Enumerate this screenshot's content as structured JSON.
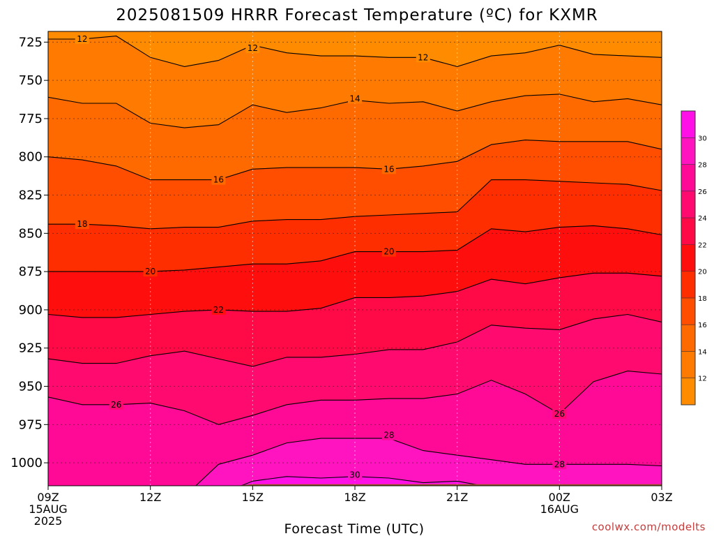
{
  "chart_data": {
    "type": "heatmap",
    "subtype": "filled-contour",
    "title": "2025081509 HRRR Forecast Temperature (ºC) for KXMR",
    "xlabel": "Forecast Time (UTC)",
    "ylabel": "",
    "y_scale": "inverted",
    "ylim": [
      1015,
      718
    ],
    "xlim": [
      0,
      18
    ],
    "grid": true,
    "x_ticks": [
      {
        "x": 0,
        "lines": [
          "09Z",
          "15AUG",
          "2025"
        ]
      },
      {
        "x": 3,
        "lines": [
          "12Z"
        ]
      },
      {
        "x": 6,
        "lines": [
          "15Z"
        ]
      },
      {
        "x": 9,
        "lines": [
          "18Z"
        ]
      },
      {
        "x": 12,
        "lines": [
          "21Z"
        ]
      },
      {
        "x": 15,
        "lines": [
          "00Z",
          "16AUG"
        ]
      },
      {
        "x": 18,
        "lines": [
          "03Z"
        ]
      }
    ],
    "y_ticks": [
      725,
      750,
      775,
      800,
      825,
      850,
      875,
      900,
      925,
      950,
      975,
      1000
    ],
    "x_hours": [
      0,
      1,
      2,
      3,
      4,
      5,
      6,
      7,
      8,
      9,
      10,
      11,
      12,
      13,
      14,
      15,
      16,
      17,
      18
    ],
    "contours": [
      {
        "level": 12,
        "labels": [
          {
            "x": 1,
            "p": 723
          },
          {
            "x": 6,
            "p": 729
          },
          {
            "x": 11,
            "p": 735
          }
        ],
        "pressure": [
          723,
          723,
          721,
          735,
          741,
          737,
          727,
          732,
          734,
          734,
          735,
          735,
          741,
          734,
          732,
          727,
          733,
          734,
          735
        ]
      },
      {
        "level": 14,
        "labels": [
          {
            "x": 9,
            "p": 762
          }
        ],
        "pressure": [
          761,
          765,
          765,
          778,
          781,
          779,
          766,
          771,
          768,
          763,
          765,
          764,
          770,
          764,
          760,
          759,
          764,
          762,
          766
        ]
      },
      {
        "level": 16,
        "labels": [
          {
            "x": 5,
            "p": 815
          },
          {
            "x": 10,
            "p": 808
          }
        ],
        "pressure": [
          800,
          802,
          806,
          815,
          815,
          815,
          808,
          807,
          807,
          807,
          808,
          806,
          803,
          792,
          789,
          790,
          790,
          790,
          795
        ]
      },
      {
        "level": 18,
        "labels": [
          {
            "x": 1,
            "p": 844
          }
        ],
        "pressure": [
          844,
          844,
          845,
          847,
          846,
          846,
          842,
          841,
          841,
          839,
          838,
          837,
          836,
          815,
          815,
          816,
          817,
          818,
          822
        ]
      },
      {
        "level": 20,
        "labels": [
          {
            "x": 3,
            "p": 875
          },
          {
            "x": 10,
            "p": 862
          }
        ],
        "pressure": [
          875,
          875,
          875,
          875,
          874,
          872,
          870,
          870,
          868,
          862,
          862,
          862,
          861,
          847,
          849,
          846,
          845,
          847,
          851
        ]
      },
      {
        "level": 22,
        "labels": [
          {
            "x": 5,
            "p": 900
          }
        ],
        "pressure": [
          903,
          905,
          905,
          903,
          901,
          900,
          901,
          901,
          899,
          892,
          892,
          891,
          888,
          880,
          883,
          879,
          876,
          876,
          878
        ]
      },
      {
        "level": 24,
        "labels": [],
        "pressure": [
          932,
          935,
          935,
          930,
          927,
          932,
          937,
          931,
          931,
          929,
          926,
          926,
          921,
          910,
          912,
          913,
          906,
          903,
          908
        ]
      },
      {
        "level": 26,
        "labels": [
          {
            "x": 2,
            "p": 962
          },
          {
            "x": 15,
            "p": 968
          }
        ],
        "pressure": [
          957,
          962,
          962,
          961,
          966,
          975,
          969,
          962,
          959,
          959,
          958,
          958,
          955,
          946,
          955,
          968,
          947,
          940,
          942
        ]
      },
      {
        "level": 28,
        "labels": [
          {
            "x": 10,
            "p": 982
          },
          {
            "x": 15,
            "p": 1001
          }
        ],
        "pressure": [
          null,
          null,
          null,
          null,
          1022,
          1001,
          995,
          987,
          984,
          984,
          984,
          992,
          995,
          998,
          1001,
          1001,
          1001,
          1001,
          1002
        ]
      },
      {
        "level": 30,
        "labels": [
          {
            "x": 9,
            "p": 1008
          }
        ],
        "pressure": [
          null,
          null,
          null,
          null,
          null,
          1021,
          1012,
          1009,
          1010,
          1009,
          1010,
          1013,
          1012,
          1016,
          null,
          null,
          null,
          null,
          null
        ]
      }
    ],
    "colorbar": {
      "placement": "right",
      "levels": [
        12,
        14,
        16,
        18,
        20,
        22,
        24,
        26,
        28,
        30
      ],
      "tick_labels": [
        "12",
        "14",
        "16",
        "18",
        "20",
        "22",
        "24",
        "26",
        "28",
        "30"
      ],
      "colors": [
        "#ff8c00",
        "#ff7a00",
        "#ff6a00",
        "#ff4e00",
        "#ff2e00",
        "#ff0e0e",
        "#ff0a46",
        "#ff0a6e",
        "#ff0a96",
        "#ff14c0",
        "#ff10e6"
      ]
    },
    "ground_color": "#a0522d"
  },
  "credit": "coolwx.com/modelts"
}
